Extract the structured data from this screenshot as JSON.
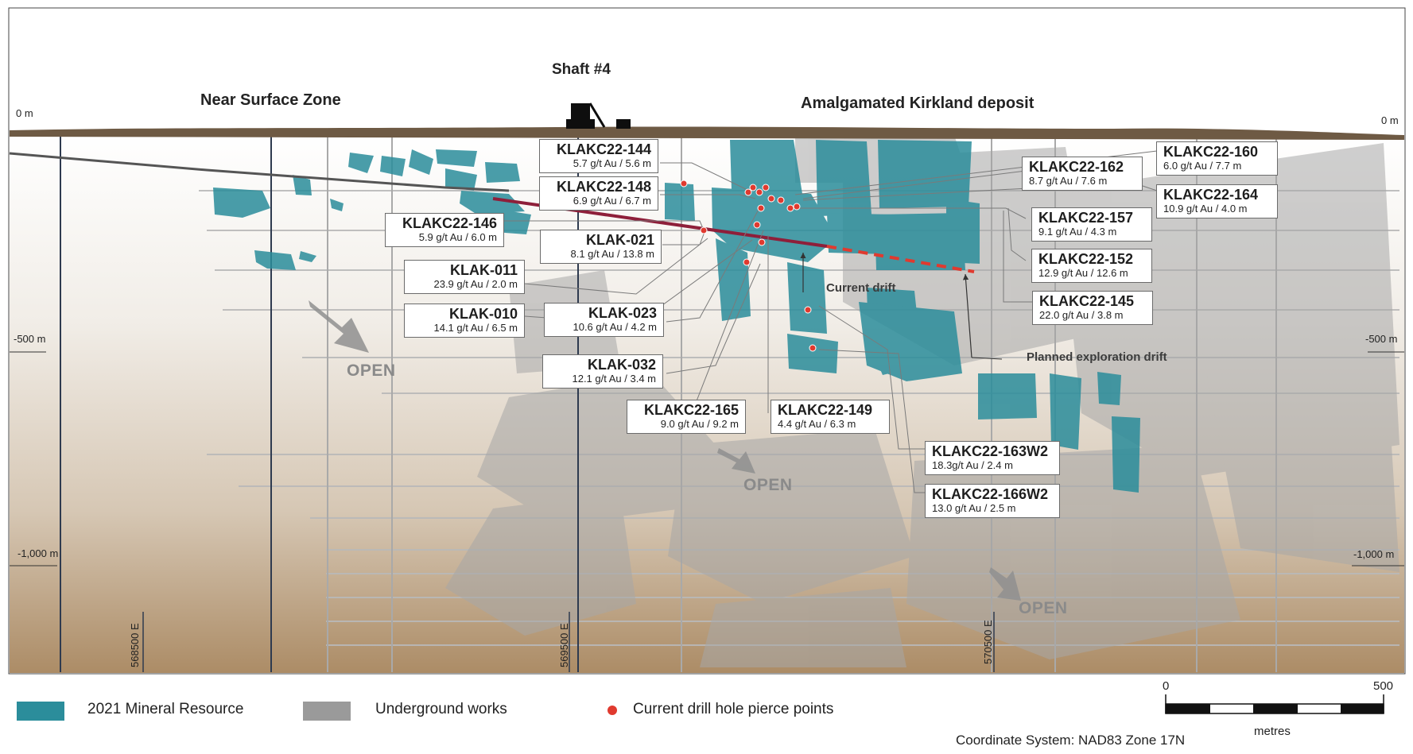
{
  "colors": {
    "resource": "#2b8d9b",
    "underground": "#9a9a9a",
    "drill_point": "#e03a2f",
    "surface": "#6e5a44",
    "current_drift": "#8e1f3a",
    "planned_drift": "#e03a2f"
  },
  "zones": {
    "near_surface": "Near Surface Zone",
    "shaft": "Shaft #4",
    "amalgamated": "Amalgamated Kirkland deposit"
  },
  "depths": {
    "left": [
      "0 m",
      "-500 m",
      "-1,000 m"
    ],
    "right": [
      "0 m",
      "-500 m",
      "-1,000 m"
    ]
  },
  "eastings": [
    "568500 E",
    "569500 E",
    "570500 E"
  ],
  "open_labels": [
    "OPEN",
    "OPEN",
    "OPEN"
  ],
  "drifts": {
    "current": "Current drift",
    "planned": "Planned exploration drift"
  },
  "intercepts": [
    {
      "hole": "KLAKC22-144",
      "grade": "5.7 g/t Au / 5.6 m"
    },
    {
      "hole": "KLAKC22-148",
      "grade": "6.9 g/t Au / 6.7 m"
    },
    {
      "hole": "KLAKC22-146",
      "grade": "5.9 g/t Au / 6.0 m"
    },
    {
      "hole": "KLAK-021",
      "grade": "8.1 g/t Au / 13.8 m"
    },
    {
      "hole": "KLAK-011",
      "grade": "23.9 g/t Au / 2.0 m"
    },
    {
      "hole": "KLAK-010",
      "grade": "14.1 g/t Au / 6.5 m"
    },
    {
      "hole": "KLAK-023",
      "grade": "10.6 g/t Au / 4.2 m"
    },
    {
      "hole": "KLAK-032",
      "grade": "12.1 g/t Au / 3.4 m"
    },
    {
      "hole": "KLAKC22-165",
      "grade": "9.0 g/t Au / 9.2 m"
    },
    {
      "hole": "KLAKC22-149",
      "grade": "4.4 g/t Au / 6.3 m"
    },
    {
      "hole": "KLAKC22-160",
      "grade": "6.0 g/t Au / 7.7 m"
    },
    {
      "hole": "KLAKC22-162",
      "grade": "8.7 g/t Au / 7.6 m"
    },
    {
      "hole": "KLAKC22-164",
      "grade": "10.9 g/t Au / 4.0 m"
    },
    {
      "hole": "KLAKC22-157",
      "grade": "9.1 g/t Au / 4.3 m"
    },
    {
      "hole": "KLAKC22-152",
      "grade": "12.9 g/t Au / 12.6 m"
    },
    {
      "hole": "KLAKC22-145",
      "grade": "22.0 g/t Au / 3.8 m"
    },
    {
      "hole": "KLAKC22-163W2",
      "grade": "18.3g/t Au / 2.4 m"
    },
    {
      "hole": "KLAKC22-166W2",
      "grade": "13.0 g/t Au / 2.5 m"
    }
  ],
  "legend": {
    "resource": "2021 Mineral Resource",
    "underground": "Underground works",
    "drill": "Current drill hole pierce points"
  },
  "scale": {
    "min": "0",
    "max": "500",
    "unit": "metres"
  },
  "coordinate_system": "Coordinate System: NAD83 Zone 17N"
}
